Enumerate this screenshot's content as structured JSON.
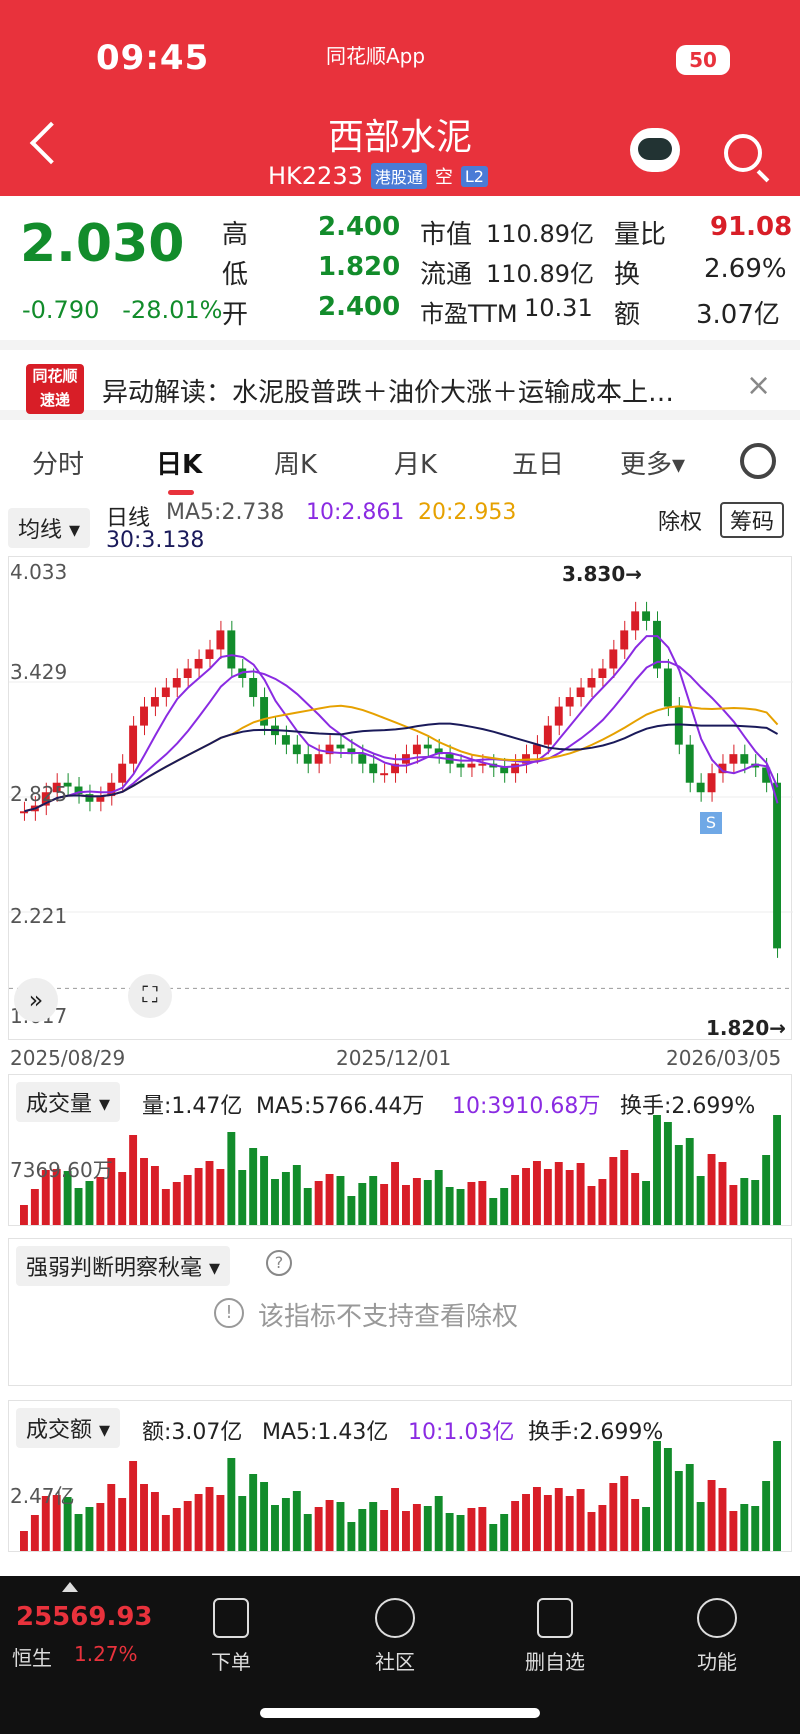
{
  "status": {
    "time": "09:45",
    "app": "同花顺App",
    "battery": "50"
  },
  "header": {
    "title": "西部水泥",
    "code": "HK2233",
    "tag_connect": "港股通",
    "tag_short": "空",
    "tag_level": "L2"
  },
  "quote": {
    "price": "2.030",
    "change": "-0.790",
    "change_pct": "-28.01%",
    "high_label": "高",
    "high": "2.400",
    "low_label": "低",
    "low": "1.820",
    "open_label": "开",
    "open": "2.400",
    "mcap_label": "市值",
    "mcap": "110.89亿",
    "float_label": "流通",
    "float": "110.89亿",
    "pe_label": "市盈TTM",
    "pe": "10.31",
    "vr_label": "量比",
    "vr": "91.08",
    "turn_label": "换",
    "turn": "2.69%",
    "amt_label": "额",
    "amt": "3.07亿"
  },
  "news": {
    "logo_top": "同花顺",
    "logo_bottom": "速递",
    "text": "异动解读：水泥股普跌＋油价大涨＋运输成本上…"
  },
  "tabs": [
    "分时",
    "日K",
    "周K",
    "月K",
    "五日",
    "更多▾"
  ],
  "kline": {
    "selector": "均线 ▾",
    "period": "日线",
    "ma5": "MA5:2.738",
    "ma10": "10:2.861",
    "ma20": "20:2.953",
    "ma30": "30:3.138",
    "fq": "除权",
    "chip": "筹码",
    "y_ticks": [
      "4.033",
      "3.429",
      "2.825",
      "2.221",
      "1.617"
    ],
    "x_ticks": [
      "2025/08/29",
      "2025/12/01",
      "2026/03/05"
    ],
    "high_mark": "3.830→",
    "low_mark": "1.820→",
    "signal": "S"
  },
  "volume": {
    "selector": "成交量 ▾",
    "vol": "量:1.47亿",
    "ma5": "MA5:5766.44万",
    "ma10": "10:3910.68万",
    "turn": "换手:2.699%",
    "level": "7369.60万"
  },
  "strength": {
    "selector": "强弱判断明察秋毫 ▾",
    "help": "?",
    "notice": "该指标不支持查看除权"
  },
  "amount": {
    "selector": "成交额 ▾",
    "amt": "额:3.07亿",
    "ma5": "MA5:1.43亿",
    "ma10": "10:1.03亿",
    "turn": "换手:2.699%",
    "level": "2.47亿"
  },
  "bottom": {
    "index_value": "25569.93",
    "index_name": "恒生",
    "index_chg": "1.27%",
    "order": "下单",
    "community": "社区",
    "remove": "删自选",
    "func": "功能"
  },
  "chart_data": {
    "type": "line",
    "x_range": [
      "2025/08/29",
      "2026/03/05"
    ],
    "ylim": [
      1.617,
      4.033
    ],
    "close": [
      2.75,
      2.78,
      2.85,
      2.9,
      2.88,
      2.84,
      2.8,
      2.83,
      2.9,
      3.0,
      3.2,
      3.3,
      3.35,
      3.4,
      3.45,
      3.5,
      3.55,
      3.6,
      3.7,
      3.5,
      3.45,
      3.35,
      3.2,
      3.15,
      3.1,
      3.05,
      3.0,
      3.05,
      3.1,
      3.08,
      3.05,
      3.0,
      2.95,
      2.95,
      3.0,
      3.05,
      3.1,
      3.08,
      3.05,
      3.0,
      2.98,
      3.0,
      3.0,
      2.98,
      2.95,
      3.0,
      3.05,
      3.1,
      3.2,
      3.3,
      3.35,
      3.4,
      3.45,
      3.5,
      3.6,
      3.7,
      3.8,
      3.75,
      3.5,
      3.3,
      3.1,
      2.9,
      2.85,
      2.95,
      3.0,
      3.05,
      3.0,
      2.98,
      2.9,
      2.03
    ],
    "series": [
      {
        "name": "MA5",
        "color": "#8a2be2"
      },
      {
        "name": "10",
        "color": "#8a2be2"
      },
      {
        "name": "20",
        "color": "#e6a100"
      },
      {
        "name": "30",
        "color": "#1a1a5a"
      }
    ]
  },
  "colors": {
    "up": "#d81e27",
    "down": "#128c2b",
    "header": "#e8323c"
  }
}
